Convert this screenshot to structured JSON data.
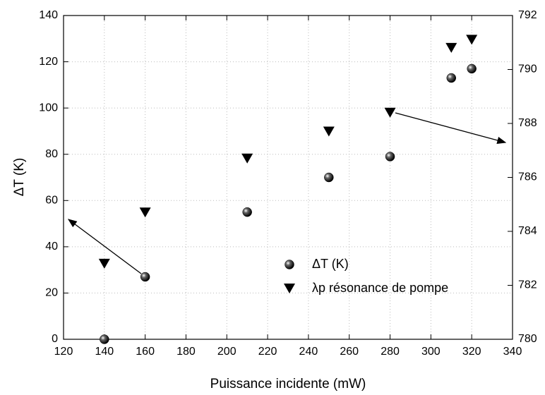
{
  "chart_data": {
    "type": "scatter",
    "xlabel": "Puissance incidente (mW)",
    "ylabel": "ΔT (K)",
    "xlim": [
      120,
      340
    ],
    "xticks": [
      120,
      140,
      160,
      180,
      200,
      220,
      240,
      260,
      280,
      300,
      320,
      340
    ],
    "ylim": [
      0,
      140
    ],
    "yticks": [
      0,
      20,
      40,
      60,
      80,
      100,
      120,
      140
    ],
    "y2lim": [
      780,
      792
    ],
    "y2ticks": [
      780,
      782,
      784,
      786,
      788,
      790,
      792
    ],
    "grid": true,
    "series": [
      {
        "name": "ΔT (K)",
        "color": "#000000",
        "marker": "sphere",
        "x": [
          140,
          160,
          210,
          250,
          280,
          310,
          320
        ],
        "values": [
          0,
          27,
          55,
          70,
          79,
          113,
          117
        ]
      },
      {
        "name": "λp résonance de pompe",
        "color": "#000000",
        "marker": "triangle-down",
        "axis": "y2",
        "x": [
          140,
          160,
          210,
          250,
          280,
          310,
          320
        ],
        "values": [
          782.8,
          784.7,
          786.7,
          787.7,
          788.4,
          790.8,
          791.1
        ]
      }
    ]
  }
}
